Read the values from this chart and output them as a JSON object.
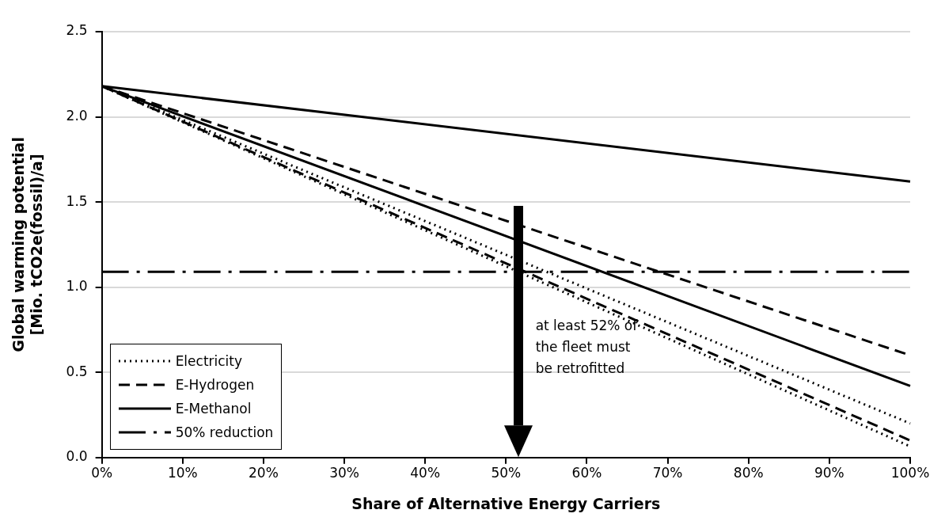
{
  "chart_data": {
    "type": "line",
    "xlabel": "Share of Alternative Energy Carriers",
    "ylabel": "Global warming potential\n[Mio. tCO2e(fossil)/a]",
    "x": [
      0,
      100
    ],
    "series": [
      {
        "name": "Electricity",
        "color": "#000000",
        "line_style": "dotted",
        "values": [
          2.18,
          0.2
        ]
      },
      {
        "color": "#000000",
        "line_style": "dotted",
        "values": [
          2.18,
          0.065
        ]
      },
      {
        "name": "E-Hydrogen",
        "color": "#000000",
        "line_style": "dashed",
        "values": [
          2.18,
          0.6
        ]
      },
      {
        "color": "#000000",
        "line_style": "dashed",
        "values": [
          2.18,
          0.1
        ]
      },
      {
        "name": "E-Methanol",
        "color": "#000000",
        "line_style": "solid",
        "values": [
          2.18,
          0.42
        ]
      },
      {
        "color": "#000000",
        "line_style": "solid",
        "values": [
          2.18,
          1.62
        ]
      }
    ],
    "ref_lines": [
      {
        "axis": "y",
        "value": 1.09,
        "label": "50% reduction",
        "color": "#000000",
        "line_style": "dashdot"
      }
    ],
    "annotations": [
      "at least 52% of\nthe fleet must\nbe retrofitted"
    ],
    "xlim": [
      0,
      100
    ],
    "xticks": [
      {
        "value": 0,
        "label": "0%"
      },
      {
        "value": 10,
        "label": "10%"
      },
      {
        "value": 20,
        "label": "20%"
      },
      {
        "value": 30,
        "label": "30%"
      },
      {
        "value": 40,
        "label": "40%"
      },
      {
        "value": 50,
        "label": "50%"
      },
      {
        "value": 60,
        "label": "60%"
      },
      {
        "value": 70,
        "label": "70%"
      },
      {
        "value": 80,
        "label": "80%"
      },
      {
        "value": 90,
        "label": "90%"
      },
      {
        "value": 100,
        "label": "100%"
      }
    ],
    "ylim": [
      0,
      2.5
    ],
    "yticks": [
      {
        "value": 0,
        "label": "0.0"
      },
      {
        "value": 0.5,
        "label": "0.5"
      },
      {
        "value": 1,
        "label": "1.0"
      },
      {
        "value": 1.5,
        "label": "1.5"
      },
      {
        "value": 2,
        "label": "2.0"
      },
      {
        "value": 2.5,
        "label": "2.5"
      }
    ],
    "grid": "y",
    "legend": "bottom left",
    "marker": "none"
  }
}
